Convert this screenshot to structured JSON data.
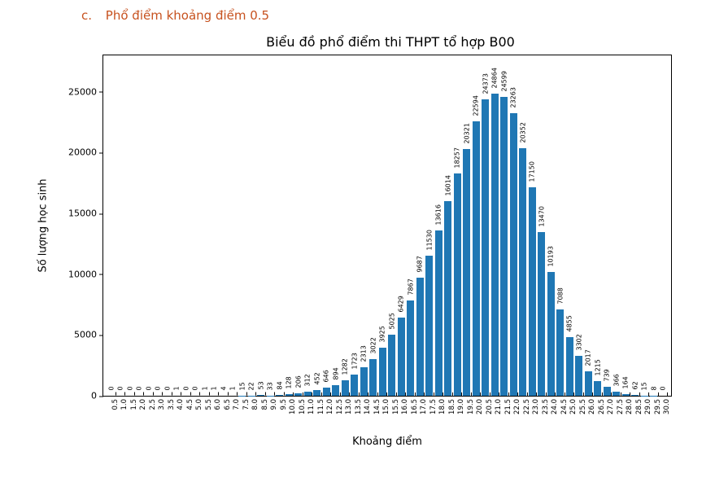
{
  "heading": {
    "letter": "c.",
    "text": "Phổ điểm khoảng điểm 0.5"
  },
  "heading_color": "#c7521f",
  "chart": {
    "type": "bar",
    "title": "Biểu đồ phổ điểm thi THPT tổ hợp B00",
    "title_fontsize": 16,
    "xlabel": "Khoảng điểm",
    "ylabel": "Số lượng học sinh",
    "label_fontsize": 13,
    "background_color": "#ffffff",
    "bar_color": "#1f77b4",
    "axis_color": "#000000",
    "ylim": [
      0,
      28000
    ],
    "ytick_step": 5000,
    "yticks": [
      0,
      5000,
      10000,
      15000,
      20000,
      25000
    ],
    "bar_width_ratio": 0.8,
    "value_label_fontsize": 8,
    "xtick_fontsize": 8.5,
    "categories": [
      "0.5",
      "1.0",
      "1.5",
      "2.0",
      "2.5",
      "3.0",
      "3.5",
      "4.0",
      "4.5",
      "5.0",
      "5.5",
      "6.0",
      "6.5",
      "7.0",
      "7.5",
      "8.0",
      "8.5",
      "9.0",
      "9.5",
      "10.0",
      "10.5",
      "11.0",
      "11.5",
      "12.0",
      "12.5",
      "13.0",
      "13.5",
      "14.0",
      "14.5",
      "15.0",
      "15.5",
      "16.0",
      "16.5",
      "17.0",
      "17.5",
      "18.0",
      "18.5",
      "19.0",
      "19.5",
      "20.0",
      "20.5",
      "21.0",
      "21.5",
      "22.0",
      "22.5",
      "23.0",
      "23.5",
      "24.0",
      "24.5",
      "25.0",
      "25.5",
      "26.0",
      "26.5",
      "27.0",
      "27.5",
      "28.0",
      "28.5",
      "29.0",
      "29.5",
      "30.0"
    ],
    "values": [
      0,
      0,
      0,
      0,
      0,
      0,
      0,
      1,
      0,
      0,
      1,
      1,
      4,
      1,
      15,
      22,
      53,
      33,
      84,
      128,
      206,
      312,
      452,
      646,
      894,
      1282,
      1723,
      2313,
      3022,
      3925,
      5025,
      6429,
      7867,
      9687,
      11530,
      13616,
      16014,
      18257,
      20321,
      22594,
      24373,
      24864,
      24599,
      23263,
      20352,
      17150,
      13470,
      10193,
      7088,
      4855,
      3302,
      2017,
      1215,
      739,
      366,
      164,
      62,
      15,
      8,
      0
    ]
  }
}
